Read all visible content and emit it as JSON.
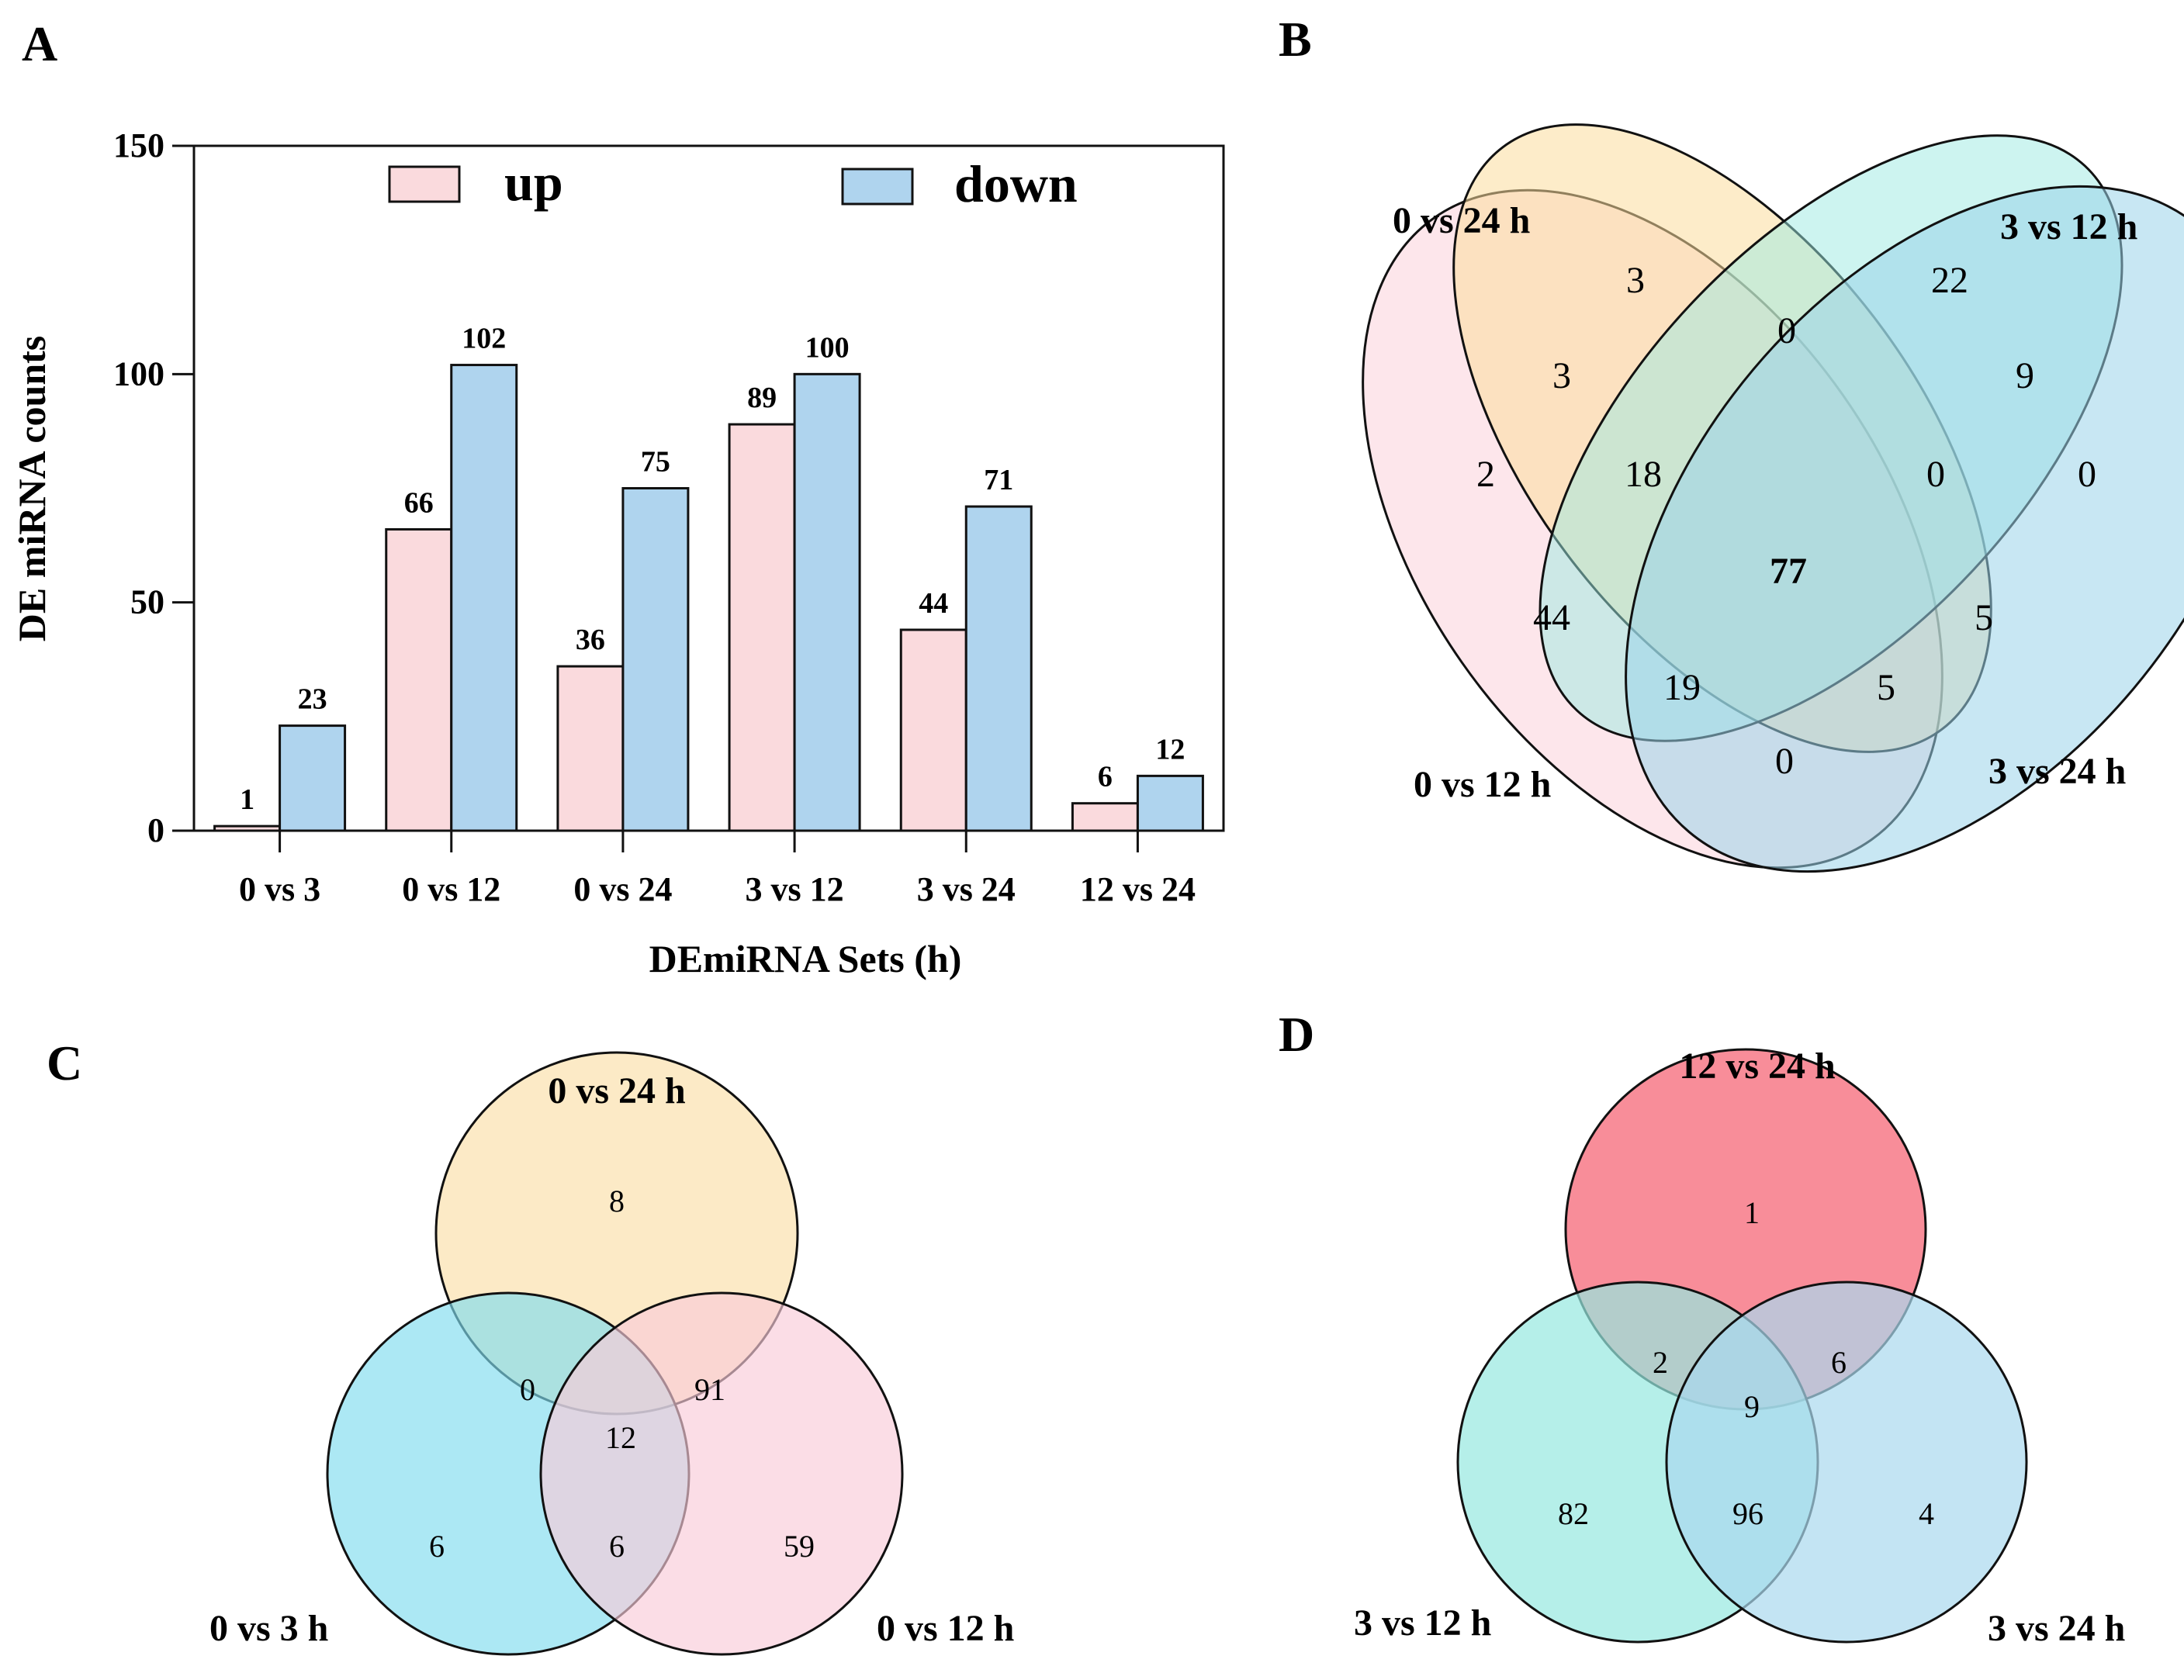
{
  "panel_letters": {
    "a": "A",
    "b": "B",
    "c": "C",
    "d": "D"
  },
  "colors": {
    "up": "#fadadd",
    "down": "#afd4ee",
    "stroke": "#111111",
    "venn_b": [
      "#fbd5dd",
      "#fbdd9c",
      "#9ce9e2",
      "#9ad4ea"
    ],
    "venn_c": [
      "#fbe3b3",
      "#7fdcee",
      "#f9cbd8"
    ],
    "venn_d": [
      "#f6707f",
      "#95e8df",
      "#a9d9ee"
    ]
  },
  "chart_data": [
    {
      "type": "bar",
      "panel": "A",
      "title": "",
      "xlabel": "DEmiRNA Sets (h)",
      "ylabel": "DE miRNA counts",
      "ylim": [
        0,
        150
      ],
      "yticks": [
        "0",
        "50",
        "100",
        "150"
      ],
      "ytick_values": [
        0,
        50,
        100,
        150
      ],
      "categories": [
        "0 vs 3",
        "0 vs 12",
        "0 vs 24",
        "3 vs 12",
        "3 vs 24",
        "12 vs 24"
      ],
      "series": [
        {
          "name": "up",
          "values": [
            1,
            66,
            36,
            89,
            44,
            6
          ]
        },
        {
          "name": "down",
          "values": [
            23,
            102,
            75,
            100,
            71,
            12
          ]
        }
      ],
      "legend": "top"
    },
    {
      "type": "venn",
      "panel": "B",
      "sets": [
        "0 vs 12 h",
        "0 vs 24 h",
        "3 vs 12 h",
        "3 vs 24 h"
      ],
      "regions": [
        {
          "sets": [
            "0 vs 24 h"
          ],
          "value": "3"
        },
        {
          "sets": [
            "3 vs 12 h"
          ],
          "value": "22"
        },
        {
          "sets": [
            "0 vs 24 h",
            "3 vs 12 h"
          ],
          "value": "0"
        },
        {
          "sets": [
            "0 vs 12 h",
            "0 vs 24 h"
          ],
          "value": "3"
        },
        {
          "sets": [
            "3 vs 12 h",
            "3 vs 24 h"
          ],
          "value": "9"
        },
        {
          "sets": [
            "0 vs 12 h"
          ],
          "value": "2"
        },
        {
          "sets": [
            "0 vs 12 h",
            "0 vs 24 h",
            "3 vs 12 h"
          ],
          "value": "18"
        },
        {
          "sets": [
            "0 vs 24 h",
            "3 vs 12 h",
            "3 vs 24 h"
          ],
          "value": "0"
        },
        {
          "sets": [
            "3 vs 24 h"
          ],
          "value": "0"
        },
        {
          "sets": [
            "0 vs 12 h",
            "0 vs 24 h",
            "3 vs 12 h",
            "3 vs 24 h"
          ],
          "value": "77"
        },
        {
          "sets": [
            "0 vs 12 h",
            "3 vs 12 h"
          ],
          "value": "44"
        },
        {
          "sets": [
            "0 vs 24 h",
            "3 vs 24 h"
          ],
          "value": "5"
        },
        {
          "sets": [
            "0 vs 12 h",
            "3 vs 12 h",
            "3 vs 24 h"
          ],
          "value": "19"
        },
        {
          "sets": [
            "0 vs 12 h",
            "0 vs 24 h",
            "3 vs 24 h"
          ],
          "value": "5"
        },
        {
          "sets": [
            "0 vs 12 h",
            "3 vs 24 h"
          ],
          "value": "0"
        }
      ]
    },
    {
      "type": "venn",
      "panel": "C",
      "sets": [
        "0 vs 24 h",
        "0 vs 3 h",
        "0 vs 12 h"
      ],
      "regions": [
        {
          "sets": [
            "0 vs 24 h"
          ],
          "value": "8"
        },
        {
          "sets": [
            "0 vs 24 h",
            "0 vs 3 h"
          ],
          "value": "0"
        },
        {
          "sets": [
            "0 vs 24 h",
            "0 vs 12 h"
          ],
          "value": "91"
        },
        {
          "sets": [
            "0 vs 24 h",
            "0 vs 3 h",
            "0 vs 12 h"
          ],
          "value": "12"
        },
        {
          "sets": [
            "0 vs 3 h"
          ],
          "value": "6"
        },
        {
          "sets": [
            "0 vs 3 h",
            "0 vs 12 h"
          ],
          "value": "6"
        },
        {
          "sets": [
            "0 vs 12 h"
          ],
          "value": "59"
        }
      ]
    },
    {
      "type": "venn",
      "panel": "D",
      "sets": [
        "12 vs 24 h",
        "3 vs 12 h",
        "3 vs 24 h"
      ],
      "regions": [
        {
          "sets": [
            "12 vs 24 h"
          ],
          "value": "1"
        },
        {
          "sets": [
            "12 vs 24 h",
            "3 vs 12 h"
          ],
          "value": "2"
        },
        {
          "sets": [
            "12 vs 24 h",
            "3 vs 24 h"
          ],
          "value": "6"
        },
        {
          "sets": [
            "12 vs 24 h",
            "3 vs 12 h",
            "3 vs 24 h"
          ],
          "value": "9"
        },
        {
          "sets": [
            "3 vs 12 h"
          ],
          "value": "82"
        },
        {
          "sets": [
            "3 vs 12 h",
            "3 vs 24 h"
          ],
          "value": "96"
        },
        {
          "sets": [
            "3 vs 24 h"
          ],
          "value": "4"
        }
      ]
    }
  ]
}
